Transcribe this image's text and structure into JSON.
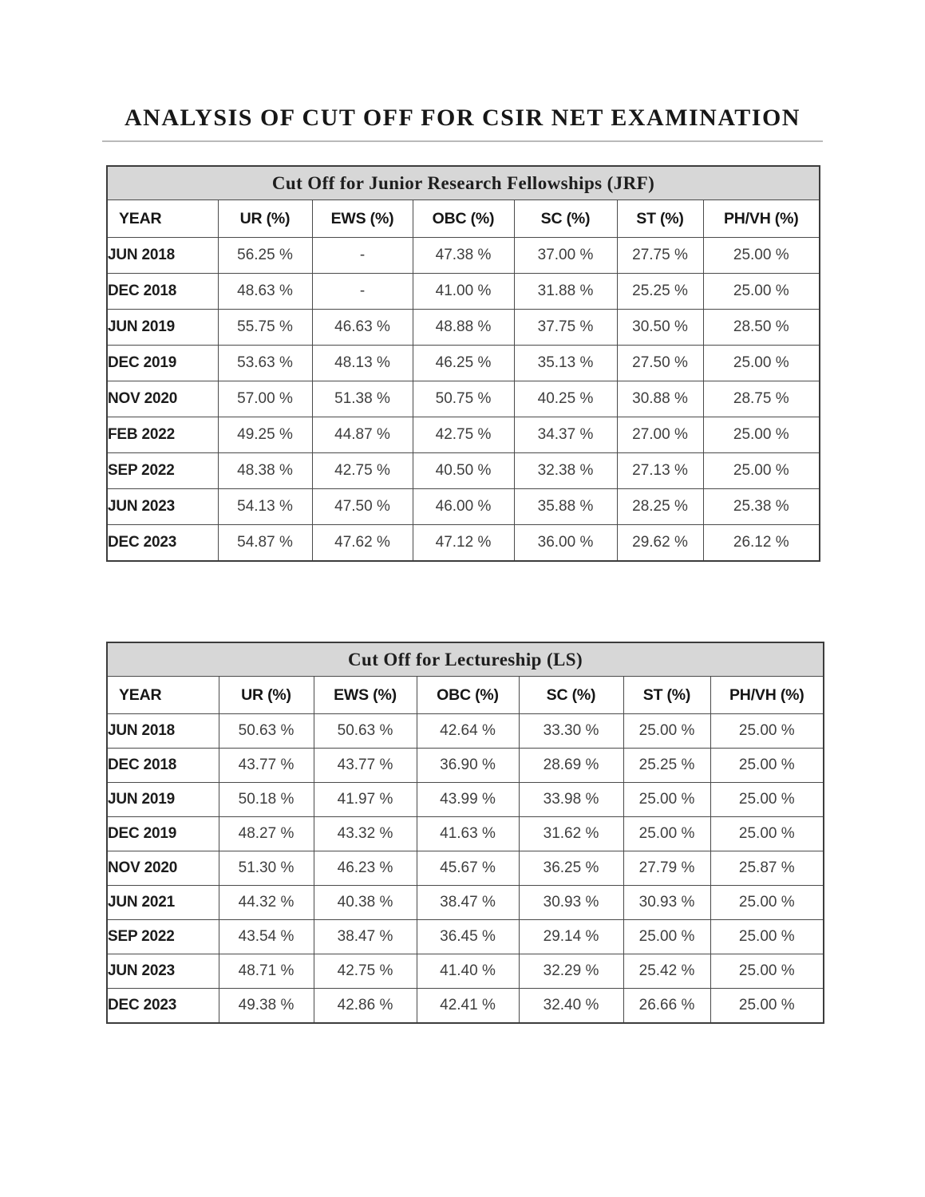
{
  "page": {
    "title": "ANALYSIS OF CUT OFF FOR CSIR NET EXAMINATION"
  },
  "colors": {
    "caption_background": "#d7d7d7",
    "table_border": "#454545",
    "data_text": "#3e3e3e",
    "heading_text": "#171717",
    "divider": "#b9b9b9"
  },
  "tables": [
    {
      "caption": "Cut Off for Junior Research Fellowships (JRF)",
      "columns": [
        "YEAR",
        "UR (%)",
        "EWS (%)",
        "OBC (%)",
        "SC (%)",
        "ST (%)",
        "PH/VH (%)"
      ],
      "rows": [
        {
          "year": "JUN 2018",
          "values": [
            "56.25 %",
            "-",
            "47.38 %",
            "37.00 %",
            "27.75 %",
            "25.00 %"
          ]
        },
        {
          "year": "DEC 2018",
          "values": [
            "48.63 %",
            "-",
            "41.00 %",
            "31.88 %",
            "25.25 %",
            "25.00 %"
          ]
        },
        {
          "year": "JUN 2019",
          "values": [
            "55.75 %",
            "46.63 %",
            "48.88 %",
            "37.75 %",
            "30.50 %",
            "28.50 %"
          ]
        },
        {
          "year": "DEC 2019",
          "values": [
            "53.63 %",
            "48.13 %",
            "46.25 %",
            "35.13 %",
            "27.50 %",
            "25.00 %"
          ]
        },
        {
          "year": "NOV 2020",
          "values": [
            "57.00 %",
            "51.38 %",
            "50.75 %",
            "40.25 %",
            "30.88 %",
            "28.75 %"
          ]
        },
        {
          "year": "FEB 2022",
          "values": [
            "49.25 %",
            "44.87 %",
            "42.75 %",
            "34.37 %",
            "27.00 %",
            "25.00 %"
          ]
        },
        {
          "year": "SEP 2022",
          "values": [
            "48.38 %",
            "42.75 %",
            "40.50 %",
            "32.38 %",
            "27.13 %",
            "25.00 %"
          ]
        },
        {
          "year": "JUN 2023",
          "values": [
            "54.13 %",
            "47.50 %",
            "46.00 %",
            "35.88 %",
            "28.25 %",
            "25.38 %"
          ]
        },
        {
          "year": "DEC 2023",
          "values": [
            "54.87 %",
            "47.62 %",
            "47.12 %",
            "36.00 %",
            "29.62 %",
            "26.12 %"
          ]
        }
      ]
    },
    {
      "caption": "Cut Off for Lectureship (LS)",
      "columns": [
        "YEAR",
        "UR (%)",
        "EWS (%)",
        "OBC (%)",
        "SC (%)",
        "ST (%)",
        "PH/VH (%)"
      ],
      "rows": [
        {
          "year": "JUN 2018",
          "values": [
            "50.63 %",
            "50.63 %",
            "42.64 %",
            "33.30 %",
            "25.00 %",
            "25.00 %"
          ]
        },
        {
          "year": "DEC 2018",
          "values": [
            "43.77 %",
            "43.77 %",
            "36.90 %",
            "28.69 %",
            "25.25 %",
            "25.00 %"
          ]
        },
        {
          "year": "JUN 2019",
          "values": [
            "50.18 %",
            "41.97 %",
            "43.99 %",
            "33.98 %",
            "25.00 %",
            "25.00 %"
          ]
        },
        {
          "year": "DEC 2019",
          "values": [
            "48.27 %",
            "43.32 %",
            "41.63 %",
            "31.62 %",
            "25.00 %",
            "25.00 %"
          ]
        },
        {
          "year": "NOV 2020",
          "values": [
            "51.30 %",
            "46.23 %",
            "45.67 %",
            "36.25 %",
            "27.79 %",
            "25.87 %"
          ]
        },
        {
          "year": "JUN 2021",
          "values": [
            "44.32 %",
            "40.38 %",
            "38.47 %",
            "30.93 %",
            "30.93 %",
            "25.00 %"
          ]
        },
        {
          "year": "SEP 2022",
          "values": [
            "43.54 %",
            "38.47 %",
            "36.45 %",
            "29.14 %",
            "25.00 %",
            "25.00 %"
          ]
        },
        {
          "year": "JUN 2023",
          "values": [
            "48.71 %",
            "42.75 %",
            "41.40 %",
            "32.29 %",
            "25.42 %",
            "25.00 %"
          ]
        },
        {
          "year": "DEC 2023",
          "values": [
            "49.38 %",
            "42.86 %",
            "42.41 %",
            "32.40 %",
            "26.66 %",
            "25.00 %"
          ]
        }
      ]
    }
  ]
}
